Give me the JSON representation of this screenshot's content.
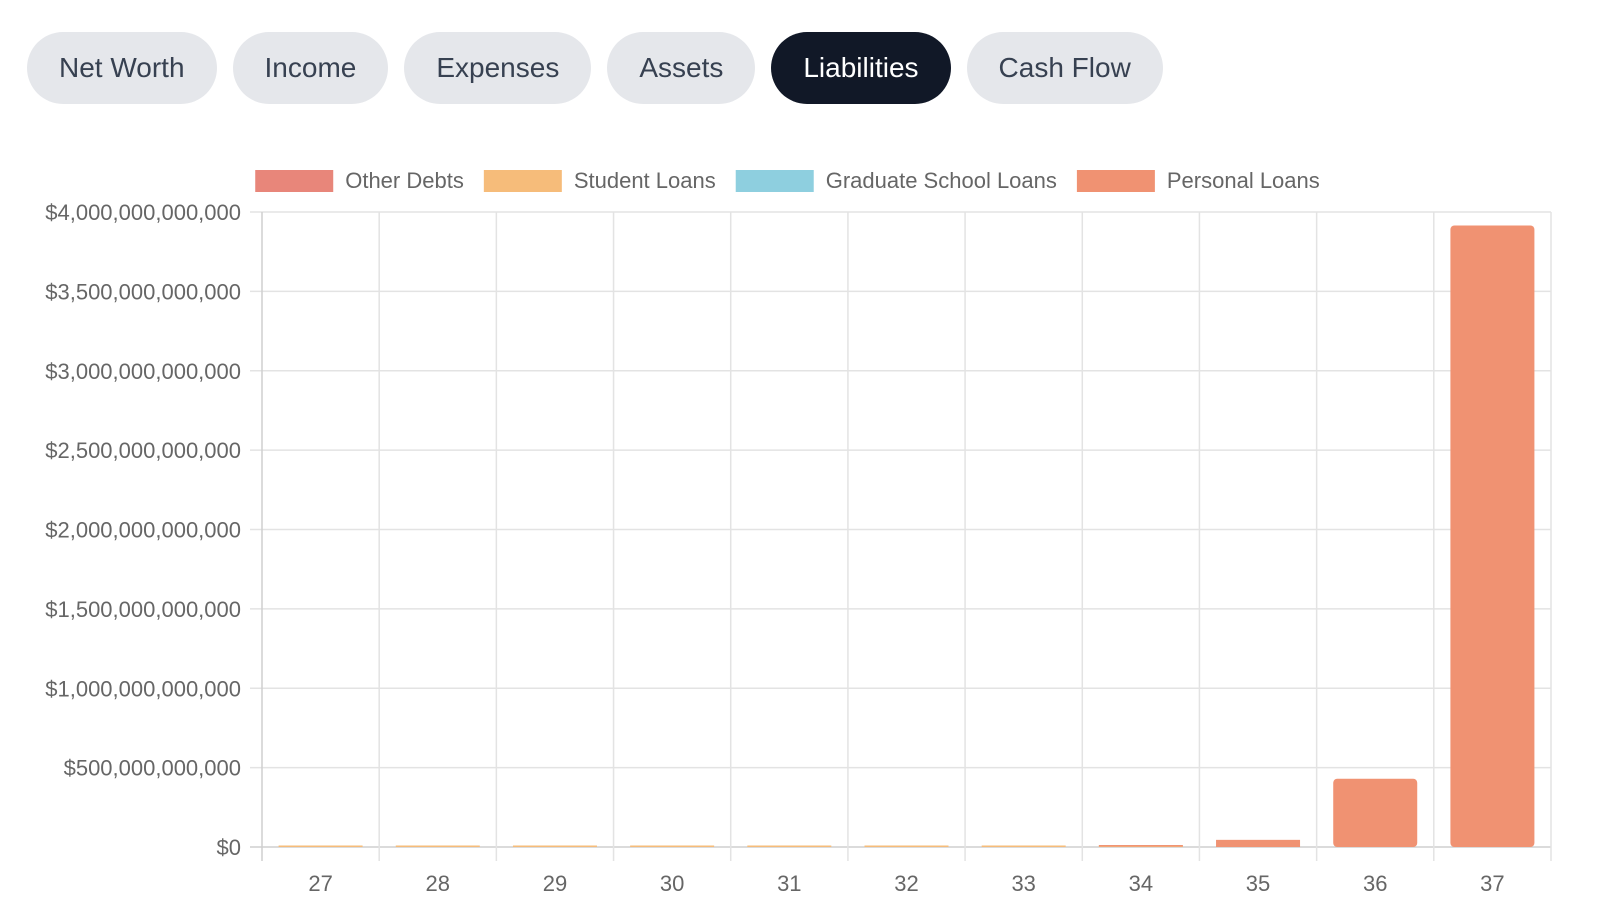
{
  "tabs": [
    {
      "label": "Net Worth",
      "active": false
    },
    {
      "label": "Income",
      "active": false
    },
    {
      "label": "Expenses",
      "active": false
    },
    {
      "label": "Assets",
      "active": false
    },
    {
      "label": "Liabilities",
      "active": true
    },
    {
      "label": "Cash Flow",
      "active": false
    }
  ],
  "chart_data": {
    "type": "bar",
    "stacked": true,
    "categories": [
      "27",
      "28",
      "29",
      "30",
      "31",
      "32",
      "33",
      "34",
      "35",
      "36",
      "37"
    ],
    "series": [
      {
        "name": "Other Debts",
        "color": "#e8867a",
        "values": [
          0,
          0,
          0,
          0,
          0,
          0,
          0,
          0,
          0,
          0,
          0
        ]
      },
      {
        "name": "Student Loans",
        "color": "#f6bc7a",
        "values": [
          3000000000,
          3000000000,
          3000000000,
          3000000000,
          3000000000,
          3000000000,
          3000000000,
          3000000000,
          0,
          0,
          0
        ]
      },
      {
        "name": "Graduate School Loans",
        "color": "#8ecfdf",
        "values": [
          0,
          0,
          0,
          0,
          0,
          0,
          0,
          0,
          0,
          0,
          0
        ]
      },
      {
        "name": "Personal Loans",
        "color": "#f09272",
        "values": [
          0,
          0,
          0,
          0,
          0,
          0,
          0,
          1000000000,
          45000000000,
          430000000000,
          3915000000000
        ]
      }
    ],
    "yticks": [
      "$0",
      "$500,000,000,000",
      "$1,000,000,000,000",
      "$1,500,000,000,000",
      "$2,000,000,000,000",
      "$2,500,000,000,000",
      "$3,000,000,000,000",
      "$3,500,000,000,000",
      "$4,000,000,000,000"
    ],
    "ylim": [
      0,
      4000000000000
    ],
    "grid": true,
    "legend_position": "top"
  }
}
